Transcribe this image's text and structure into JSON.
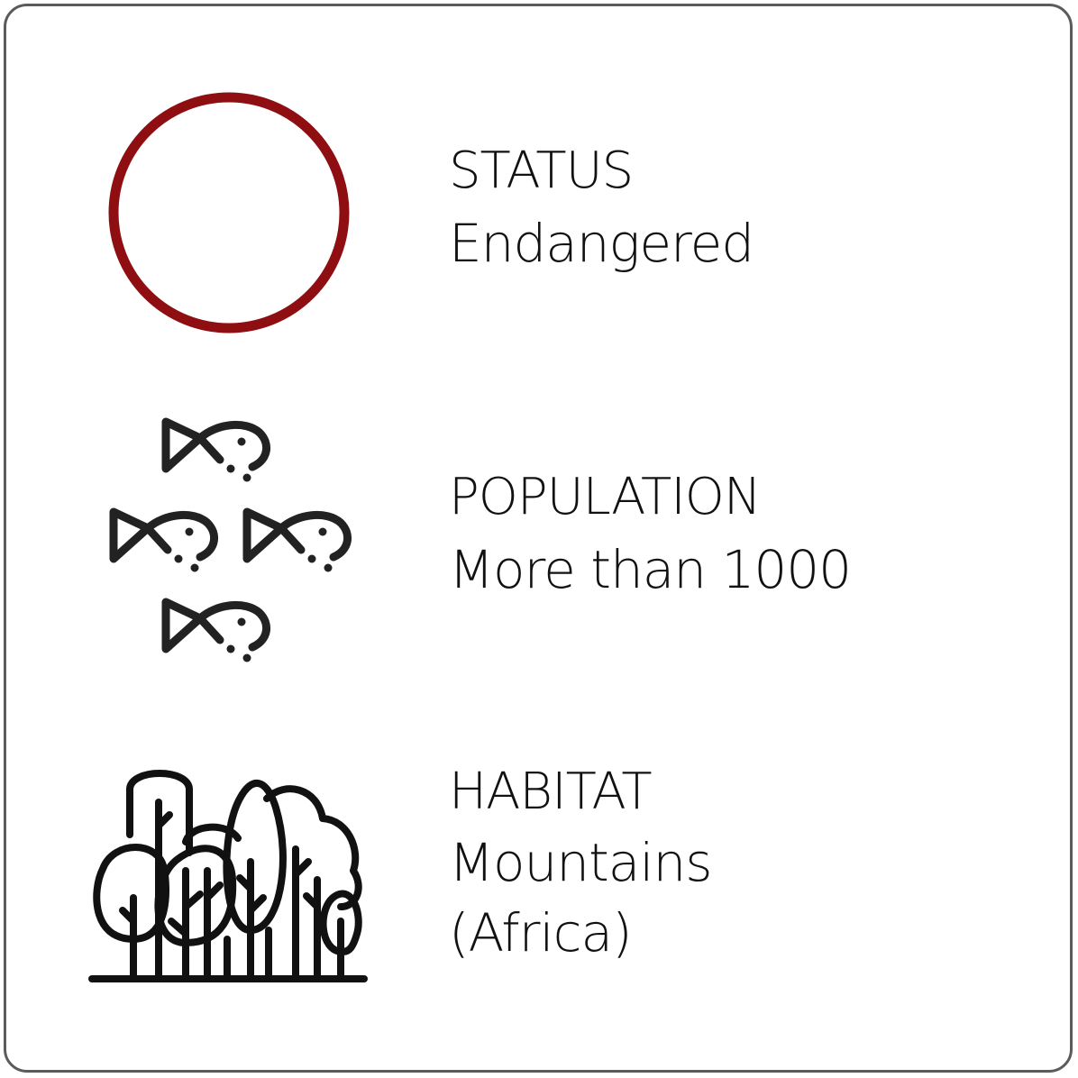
{
  "facts": [
    {
      "icon": "status-circle-icon",
      "title": "STATUS",
      "value": "Endangered"
    },
    {
      "icon": "fish-group-icon",
      "title": "POPULATION",
      "value": "More than 1000"
    },
    {
      "icon": "forest-icon",
      "title": "HABITAT",
      "value": "Mountains",
      "detail": "(Africa)"
    }
  ],
  "colors": {
    "status_ring": "#8e0e12",
    "icon_stroke": "#222222",
    "border": "#5b5b5b",
    "text": "#111111"
  }
}
